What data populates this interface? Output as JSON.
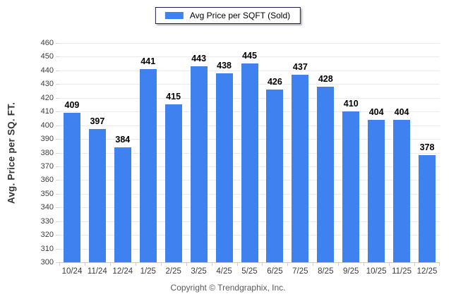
{
  "legend": {
    "items": [
      {
        "label": "Avg Price per SQFT (Sold)",
        "color": "#3f81ee"
      }
    ]
  },
  "chart_data": {
    "type": "bar",
    "title": "",
    "series_name": "Avg Price per SQFT (Sold)",
    "categories": [
      "10/24",
      "11/24",
      "12/24",
      "1/25",
      "2/25",
      "3/25",
      "4/25",
      "5/25",
      "6/25",
      "7/25",
      "8/25",
      "9/25",
      "10/25",
      "11/25",
      "12/25"
    ],
    "values": [
      409,
      397,
      384,
      441,
      415,
      443,
      438,
      445,
      426,
      437,
      428,
      410,
      404,
      404,
      378
    ],
    "xlabel": "",
    "ylabel": "Avg. Price per SQ. FT.",
    "ylim": [
      300,
      460
    ],
    "ytick_step": 10,
    "grid": "horizontal",
    "legend_position": "top-center",
    "bar_color": "#3f81ee",
    "grid_color": "#ebebeb",
    "axis_line_color": "#c9c9c9",
    "data_labels": true
  },
  "footer": {
    "copyright": "Copyright © Trendgraphix, Inc."
  }
}
